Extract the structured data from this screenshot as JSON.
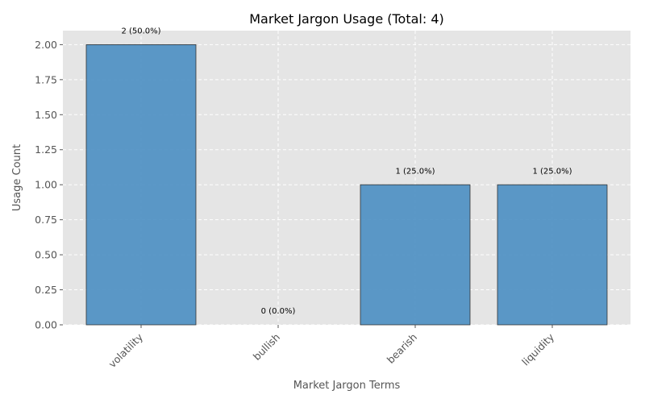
{
  "chart_data": {
    "type": "bar",
    "title": "Market Jargon Usage (Total: 4)",
    "xlabel": "Market Jargon Terms",
    "ylabel": "Usage Count",
    "categories": [
      "volatility",
      "bullish",
      "bearish",
      "liquidity"
    ],
    "values": [
      2,
      0,
      1,
      1
    ],
    "data_labels": [
      "2 (50.0%)",
      "0 (0.0%)",
      "1 (25.0%)",
      "1 (25.0%)"
    ],
    "ylim": [
      0,
      2.1
    ],
    "yticks": [
      "0.00",
      "0.25",
      "0.50",
      "0.75",
      "1.00",
      "1.25",
      "1.50",
      "1.75",
      "2.00"
    ],
    "grid": true,
    "colors": {
      "bar": "#4a8ec2",
      "bar_edge": "#333333",
      "plot_background": "#e5e5e5",
      "grid": "#ffffff"
    }
  }
}
